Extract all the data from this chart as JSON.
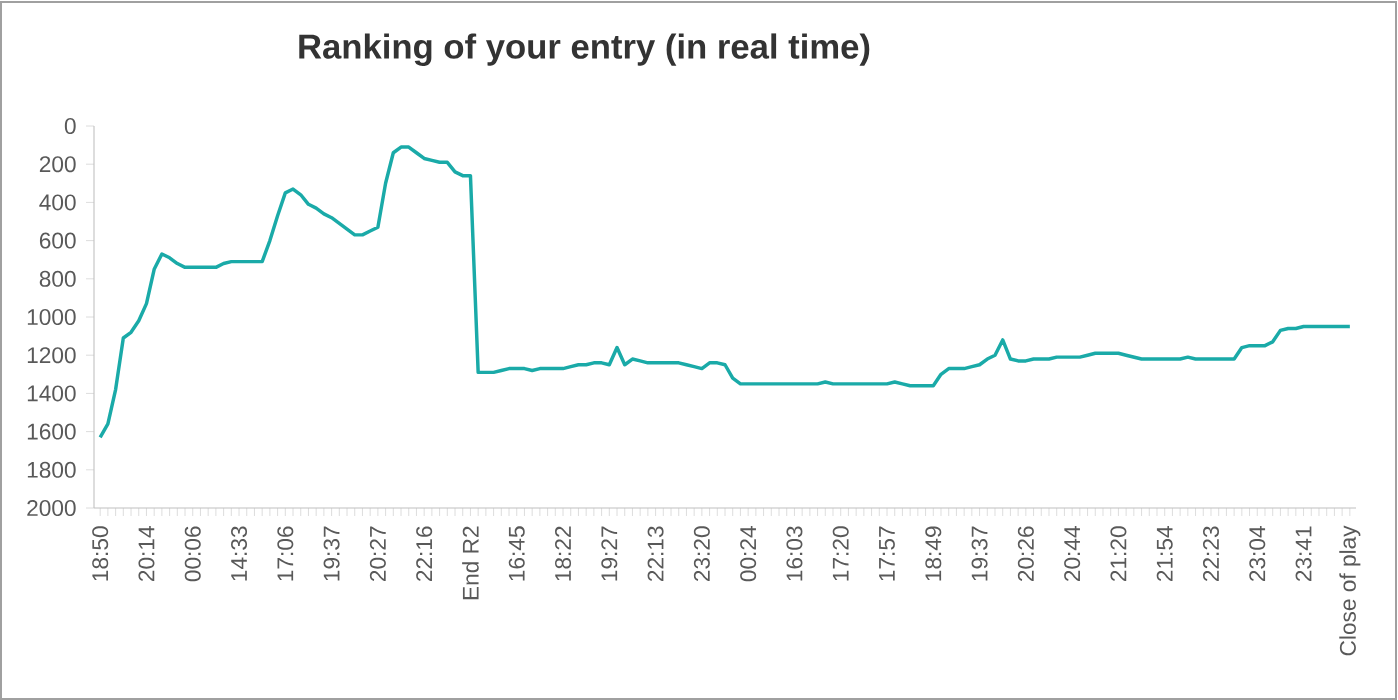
{
  "chart_data": {
    "type": "line",
    "title": "Ranking of your entry (in real time)",
    "categories": [
      "18:50",
      null,
      null,
      null,
      null,
      null,
      "20:14",
      null,
      null,
      null,
      null,
      null,
      "00:06",
      null,
      null,
      null,
      null,
      null,
      "14:33",
      null,
      null,
      null,
      null,
      null,
      "17:06",
      null,
      null,
      null,
      null,
      null,
      "19:37",
      null,
      null,
      null,
      null,
      null,
      "20:27",
      null,
      null,
      null,
      null,
      null,
      "22:16",
      null,
      null,
      null,
      null,
      null,
      "End R2",
      null,
      null,
      null,
      null,
      null,
      "16:45",
      null,
      null,
      null,
      null,
      null,
      "18:22",
      null,
      null,
      null,
      null,
      null,
      "19:27",
      null,
      null,
      null,
      null,
      null,
      "22:13",
      null,
      null,
      null,
      null,
      null,
      "23:20",
      null,
      null,
      null,
      null,
      null,
      "00:24",
      null,
      null,
      null,
      null,
      null,
      "16:03",
      null,
      null,
      null,
      null,
      null,
      "17:20",
      null,
      null,
      null,
      null,
      null,
      "17:57",
      null,
      null,
      null,
      null,
      null,
      "18:49",
      null,
      null,
      null,
      null,
      null,
      "19:37",
      null,
      null,
      null,
      null,
      null,
      "20:26",
      null,
      null,
      null,
      null,
      null,
      "20:44",
      null,
      null,
      null,
      null,
      null,
      "21:20",
      null,
      null,
      null,
      null,
      null,
      "21:54",
      null,
      null,
      null,
      null,
      null,
      "22:23",
      null,
      null,
      null,
      null,
      null,
      "23:04",
      null,
      null,
      null,
      null,
      null,
      "23:41",
      null,
      null,
      null,
      null,
      null,
      "Close of play"
    ],
    "values": [
      1630,
      1560,
      1380,
      1110,
      1080,
      1020,
      930,
      750,
      670,
      690,
      720,
      740,
      740,
      740,
      740,
      740,
      720,
      710,
      710,
      710,
      710,
      710,
      600,
      470,
      350,
      330,
      360,
      410,
      430,
      460,
      480,
      510,
      540,
      570,
      570,
      550,
      530,
      300,
      140,
      110,
      110,
      140,
      170,
      180,
      190,
      190,
      240,
      260,
      260,
      1290,
      1290,
      1290,
      1280,
      1270,
      1270,
      1270,
      1280,
      1270,
      1270,
      1270,
      1270,
      1260,
      1250,
      1250,
      1240,
      1240,
      1250,
      1160,
      1250,
      1220,
      1230,
      1240,
      1240,
      1240,
      1240,
      1240,
      1250,
      1260,
      1270,
      1240,
      1240,
      1250,
      1320,
      1350,
      1350,
      1350,
      1350,
      1350,
      1350,
      1350,
      1350,
      1350,
      1350,
      1350,
      1340,
      1350,
      1350,
      1350,
      1350,
      1350,
      1350,
      1350,
      1350,
      1340,
      1350,
      1360,
      1360,
      1360,
      1360,
      1300,
      1270,
      1270,
      1270,
      1260,
      1250,
      1220,
      1200,
      1120,
      1220,
      1230,
      1230,
      1220,
      1220,
      1220,
      1210,
      1210,
      1210,
      1210,
      1200,
      1190,
      1190,
      1190,
      1190,
      1200,
      1210,
      1220,
      1220,
      1220,
      1220,
      1220,
      1220,
      1210,
      1220,
      1220,
      1220,
      1220,
      1220,
      1220,
      1160,
      1150,
      1150,
      1150,
      1130,
      1070,
      1060,
      1060,
      1050,
      1050,
      1050,
      1050,
      1050,
      1050,
      1050
    ],
    "color": "#1aaaa8",
    "ylim": [
      2000,
      0
    ],
    "yticks": [
      0,
      200,
      400,
      600,
      800,
      1000,
      1200,
      1400,
      1600,
      1800,
      2000
    ],
    "marker": "none",
    "line_style": "solid"
  }
}
